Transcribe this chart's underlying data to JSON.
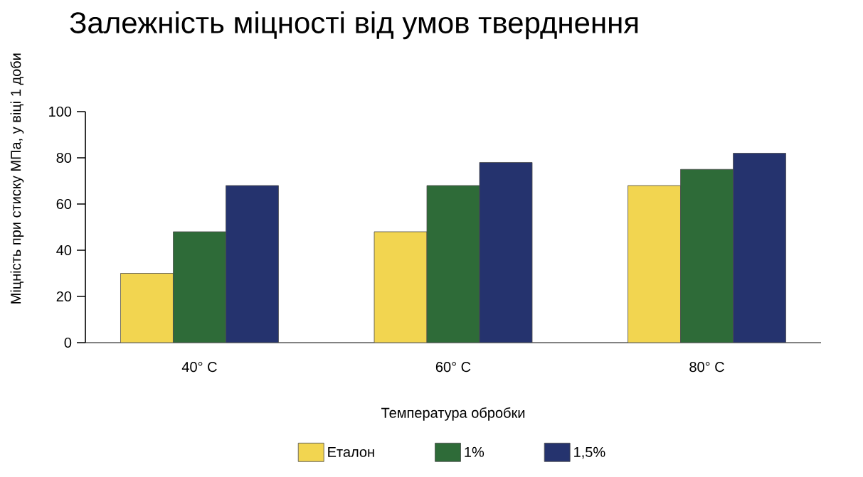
{
  "chart_data": {
    "type": "bar",
    "title": "Залежність міцності від умов тверднення",
    "xlabel": "Температура обробки",
    "ylabel": "Міцність при стиску МПа, у віці 1 доби",
    "categories": [
      "40° C",
      "60° C",
      "80° C"
    ],
    "series": [
      {
        "name": "Еталон",
        "color": "#f2d550",
        "values": [
          30,
          48,
          68
        ]
      },
      {
        "name": "1%",
        "color": "#2e6b38",
        "values": [
          48,
          68,
          75
        ]
      },
      {
        "name": "1,5%",
        "color": "#25336e",
        "values": [
          68,
          78,
          82
        ]
      }
    ],
    "ylim": [
      0,
      100
    ],
    "yticks": [
      0,
      20,
      40,
      60,
      80,
      100
    ],
    "grid": false,
    "legend": "bottom"
  }
}
